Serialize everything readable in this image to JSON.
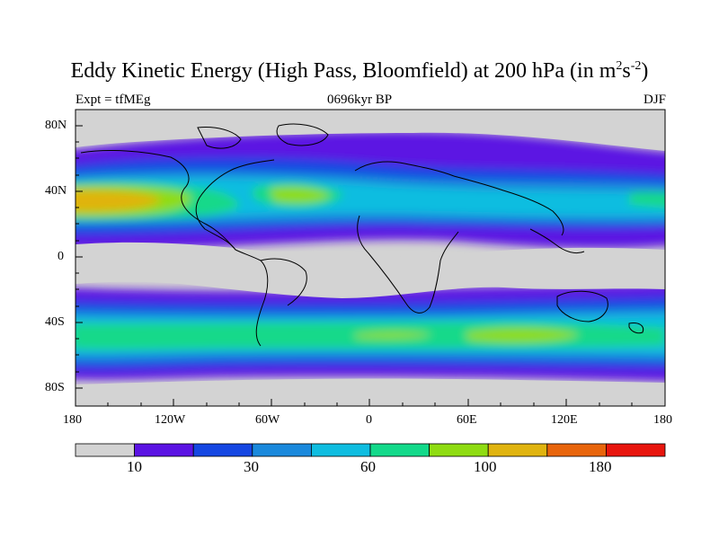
{
  "title": {
    "main": "Eddy Kinetic Energy (High Pass, Bloomfield) at 200 hPa (in m",
    "sup1": "2",
    "mid": "s",
    "sup2": "-2",
    "end": ")"
  },
  "left_label": "Expt = tfMEg",
  "center_label": "0696kyr BP",
  "right_label": "DJF",
  "lat_ticks": [
    "80N",
    "40N",
    "0",
    "40S",
    "80S"
  ],
  "lon_ticks": [
    "180",
    "120W",
    "60W",
    "0",
    "60E",
    "120E",
    "180"
  ],
  "colorbar": {
    "colors": [
      "#d3d3d3",
      "#5b13e3",
      "#1547e2",
      "#1a89dc",
      "#0fbde0",
      "#13d98a",
      "#8fdc12",
      "#e0b410",
      "#e8650c",
      "#e8160e"
    ],
    "labels": [
      "10",
      "30",
      "60",
      "100",
      "180"
    ]
  },
  "colors": {
    "land_background": "#d3d3d3",
    "coastline": "#000000"
  }
}
